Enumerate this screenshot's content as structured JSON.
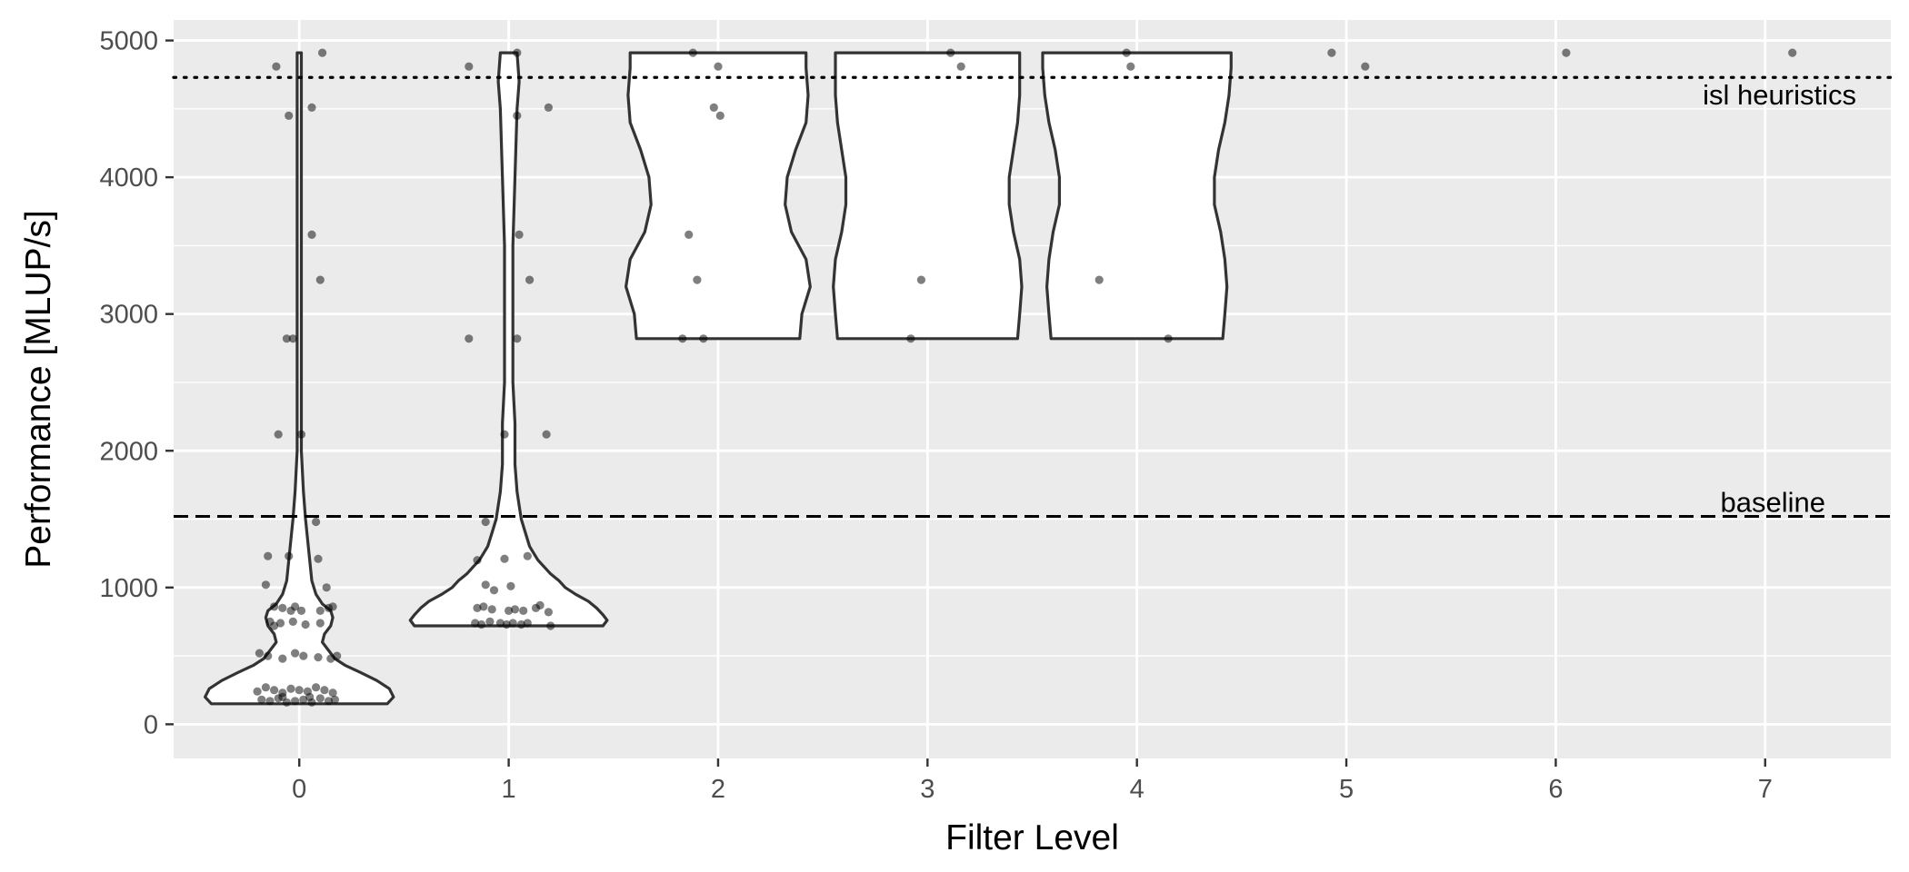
{
  "chart_data": {
    "type": "violin",
    "xlabel": "Filter Level",
    "ylabel": "Performance [MLUP/s]",
    "categories": [
      "0",
      "1",
      "2",
      "3",
      "4",
      "5",
      "6",
      "7"
    ],
    "yticks": [
      0,
      1000,
      2000,
      3000,
      4000,
      5000
    ],
    "ytick_labels": [
      "0",
      "1000",
      "2000",
      "3000",
      "4000",
      "5000"
    ],
    "ylim": [
      -250,
      5150
    ],
    "xlim": [
      -0.6,
      7.6
    ],
    "grid": true,
    "panel_background": "#ebebeb",
    "grid_color": "#ffffff",
    "violin_fill": "#ffffff",
    "violin_stroke": "#333333",
    "point_color": "#000000",
    "reference_lines": [
      {
        "label": "isl heuristics",
        "value": 4730,
        "style": "dotted"
      },
      {
        "label": "baseline",
        "value": 1520,
        "style": "dashed"
      }
    ],
    "violins": [
      {
        "x": 0,
        "profile": [
          [
            150,
            0.42
          ],
          [
            200,
            0.45
          ],
          [
            260,
            0.43
          ],
          [
            320,
            0.37
          ],
          [
            380,
            0.29
          ],
          [
            430,
            0.22
          ],
          [
            480,
            0.17
          ],
          [
            540,
            0.14
          ],
          [
            600,
            0.11
          ],
          [
            660,
            0.12
          ],
          [
            720,
            0.15
          ],
          [
            780,
            0.16
          ],
          [
            830,
            0.15
          ],
          [
            880,
            0.11
          ],
          [
            950,
            0.08
          ],
          [
            1050,
            0.06
          ],
          [
            1200,
            0.05
          ],
          [
            1350,
            0.04
          ],
          [
            1500,
            0.03
          ],
          [
            1700,
            0.02
          ],
          [
            2000,
            0.01
          ],
          [
            2500,
            0.01
          ],
          [
            3000,
            0.01
          ],
          [
            3500,
            0.01
          ],
          [
            4000,
            0.01
          ],
          [
            4500,
            0.01
          ],
          [
            4910,
            0.01
          ]
        ]
      },
      {
        "x": 1,
        "profile": [
          [
            720,
            0.45
          ],
          [
            760,
            0.47
          ],
          [
            800,
            0.45
          ],
          [
            850,
            0.42
          ],
          [
            900,
            0.38
          ],
          [
            950,
            0.32
          ],
          [
            1000,
            0.27
          ],
          [
            1050,
            0.24
          ],
          [
            1100,
            0.2
          ],
          [
            1150,
            0.17
          ],
          [
            1200,
            0.14
          ],
          [
            1250,
            0.12
          ],
          [
            1300,
            0.1
          ],
          [
            1400,
            0.08
          ],
          [
            1500,
            0.06
          ],
          [
            1600,
            0.05
          ],
          [
            1700,
            0.04
          ],
          [
            1900,
            0.03
          ],
          [
            2200,
            0.03
          ],
          [
            2500,
            0.02
          ],
          [
            3000,
            0.02
          ],
          [
            3500,
            0.02
          ],
          [
            4000,
            0.03
          ],
          [
            4500,
            0.04
          ],
          [
            4700,
            0.05
          ],
          [
            4910,
            0.04
          ]
        ]
      },
      {
        "x": 2,
        "profile": [
          [
            2820,
            0.39
          ],
          [
            3000,
            0.4
          ],
          [
            3200,
            0.44
          ],
          [
            3400,
            0.42
          ],
          [
            3600,
            0.35
          ],
          [
            3800,
            0.32
          ],
          [
            4000,
            0.33
          ],
          [
            4200,
            0.37
          ],
          [
            4400,
            0.42
          ],
          [
            4600,
            0.43
          ],
          [
            4800,
            0.42
          ],
          [
            4910,
            0.42
          ]
        ]
      },
      {
        "x": 3,
        "profile": [
          [
            2820,
            0.43
          ],
          [
            3000,
            0.44
          ],
          [
            3200,
            0.45
          ],
          [
            3400,
            0.44
          ],
          [
            3600,
            0.41
          ],
          [
            3800,
            0.39
          ],
          [
            4000,
            0.39
          ],
          [
            4200,
            0.41
          ],
          [
            4400,
            0.43
          ],
          [
            4600,
            0.44
          ],
          [
            4800,
            0.44
          ],
          [
            4910,
            0.44
          ]
        ]
      },
      {
        "x": 4,
        "profile": [
          [
            2820,
            0.41
          ],
          [
            3000,
            0.42
          ],
          [
            3200,
            0.43
          ],
          [
            3400,
            0.42
          ],
          [
            3600,
            0.4
          ],
          [
            3800,
            0.37
          ],
          [
            4000,
            0.37
          ],
          [
            4200,
            0.39
          ],
          [
            4400,
            0.42
          ],
          [
            4600,
            0.44
          ],
          [
            4800,
            0.45
          ],
          [
            4910,
            0.45
          ]
        ]
      }
    ],
    "points": [
      [
        -0.11,
        4810
      ],
      [
        -0.05,
        4450
      ],
      [
        0.06,
        4510
      ],
      [
        0.11,
        4910
      ],
      [
        0.06,
        3580
      ],
      [
        0.1,
        3250
      ],
      [
        -0.06,
        2820
      ],
      [
        -0.03,
        2820
      ],
      [
        -0.1,
        2120
      ],
      [
        0.01,
        2120
      ],
      [
        -0.15,
        1230
      ],
      [
        -0.05,
        1230
      ],
      [
        0.09,
        1210
      ],
      [
        0.08,
        1480
      ],
      [
        -0.16,
        1020
      ],
      [
        0.13,
        1000
      ],
      [
        -0.12,
        860
      ],
      [
        -0.08,
        850
      ],
      [
        -0.04,
        830
      ],
      [
        0.01,
        830
      ],
      [
        0.1,
        830
      ],
      [
        0.14,
        850
      ],
      [
        -0.02,
        860
      ],
      [
        0.16,
        860
      ],
      [
        -0.14,
        750
      ],
      [
        -0.09,
        740
      ],
      [
        -0.03,
        750
      ],
      [
        0.03,
        730
      ],
      [
        0.1,
        740
      ],
      [
        -0.12,
        720
      ],
      [
        -0.19,
        520
      ],
      [
        -0.15,
        500
      ],
      [
        -0.08,
        480
      ],
      [
        0.02,
        500
      ],
      [
        0.09,
        490
      ],
      [
        0.18,
        500
      ],
      [
        0.15,
        480
      ],
      [
        -0.02,
        520
      ],
      [
        -0.2,
        240
      ],
      [
        -0.16,
        270
      ],
      [
        -0.12,
        250
      ],
      [
        -0.08,
        230
      ],
      [
        -0.04,
        260
      ],
      [
        0,
        250
      ],
      [
        0.04,
        240
      ],
      [
        0.08,
        270
      ],
      [
        0.12,
        250
      ],
      [
        0.16,
        230
      ],
      [
        -0.18,
        180
      ],
      [
        -0.14,
        170
      ],
      [
        -0.1,
        190
      ],
      [
        -0.06,
        160
      ],
      [
        -0.02,
        170
      ],
      [
        0.02,
        180
      ],
      [
        0.06,
        160
      ],
      [
        0.1,
        190
      ],
      [
        0.14,
        170
      ],
      [
        0.17,
        180
      ],
      [
        -0.08,
        200
      ],
      [
        0.05,
        200
      ],
      [
        0.81,
        4810
      ],
      [
        1.04,
        4910
      ],
      [
        1.04,
        4450
      ],
      [
        1.19,
        4510
      ],
      [
        1.05,
        3580
      ],
      [
        1.1,
        3250
      ],
      [
        0.81,
        2820
      ],
      [
        1.04,
        2820
      ],
      [
        0.98,
        2120
      ],
      [
        1.18,
        2120
      ],
      [
        0.89,
        1480
      ],
      [
        0.85,
        1200
      ],
      [
        0.98,
        1210
      ],
      [
        1.09,
        1230
      ],
      [
        0.89,
        1020
      ],
      [
        1.01,
        1010
      ],
      [
        0.93,
        980
      ],
      [
        0.85,
        850
      ],
      [
        0.88,
        860
      ],
      [
        0.92,
        840
      ],
      [
        1.0,
        830
      ],
      [
        1.03,
        840
      ],
      [
        1.07,
        830
      ],
      [
        1.13,
        850
      ],
      [
        1.15,
        870
      ],
      [
        1.19,
        820
      ],
      [
        0.84,
        740
      ],
      [
        0.87,
        730
      ],
      [
        0.91,
        750
      ],
      [
        0.96,
        740
      ],
      [
        0.99,
        730
      ],
      [
        1.02,
        740
      ],
      [
        1.06,
        730
      ],
      [
        1.09,
        740
      ],
      [
        1.2,
        720
      ],
      [
        1.88,
        4910
      ],
      [
        2.0,
        4810
      ],
      [
        1.98,
        4510
      ],
      [
        2.01,
        4450
      ],
      [
        1.86,
        3580
      ],
      [
        1.9,
        3250
      ],
      [
        1.83,
        2820
      ],
      [
        1.93,
        2820
      ],
      [
        3.11,
        4910
      ],
      [
        3.16,
        4810
      ],
      [
        2.97,
        3250
      ],
      [
        2.92,
        2820
      ],
      [
        3.95,
        4910
      ],
      [
        3.97,
        4810
      ],
      [
        3.82,
        3250
      ],
      [
        4.15,
        2820
      ],
      [
        4.93,
        4910
      ],
      [
        5.09,
        4810
      ],
      [
        6.05,
        4910
      ],
      [
        7.13,
        4910
      ]
    ]
  }
}
